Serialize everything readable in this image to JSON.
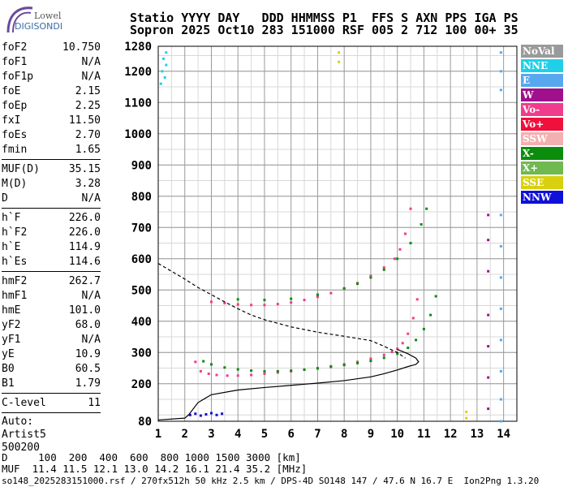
{
  "logo": {
    "line1": "Lowell",
    "line2": "DIGISONDE"
  },
  "header": {
    "row1": "Statio YYYY DAY   DDD HHMMSS P1  FFS S AXN PPS IGA PS",
    "row2": "Sopron 2025 Oct10 283 151000 RSF 005 2 712 100 00+ 35"
  },
  "params": {
    "group1": [
      {
        "k": "foF2",
        "v": "10.750"
      },
      {
        "k": "foF1",
        "v": "N/A"
      },
      {
        "k": "foF1p",
        "v": "N/A"
      },
      {
        "k": "foE",
        "v": "2.15"
      },
      {
        "k": "foEp",
        "v": "2.25"
      },
      {
        "k": "fxI",
        "v": "11.50"
      },
      {
        "k": "foEs",
        "v": "2.70"
      },
      {
        "k": "fmin",
        "v": "1.65"
      }
    ],
    "group2": [
      {
        "k": "MUF(D)",
        "v": "35.15"
      },
      {
        "k": "M(D)",
        "v": "3.28"
      },
      {
        "k": "D",
        "v": "N/A"
      }
    ],
    "group3": [
      {
        "k": "h`F",
        "v": "226.0"
      },
      {
        "k": "h`F2",
        "v": "226.0"
      },
      {
        "k": "h`E",
        "v": "114.9"
      },
      {
        "k": "h`Es",
        "v": "114.6"
      }
    ],
    "group4": [
      {
        "k": "hmF2",
        "v": "262.7"
      },
      {
        "k": "hmF1",
        "v": "N/A"
      },
      {
        "k": "hmE",
        "v": "101.0"
      },
      {
        "k": "yF2",
        "v": "68.0"
      },
      {
        "k": "yF1",
        "v": "N/A"
      },
      {
        "k": "yE",
        "v": "10.9"
      },
      {
        "k": "B0",
        "v": "60.5"
      },
      {
        "k": "B1",
        "v": "1.79"
      }
    ],
    "group5": [
      {
        "k": "C-level",
        "v": "11"
      }
    ],
    "auto": [
      "Auto:",
      "Artist5",
      "500200"
    ]
  },
  "legend": [
    {
      "label": "NoVal",
      "color": "#9a9a9a"
    },
    {
      "label": "NNE",
      "color": "#20d0e8"
    },
    {
      "label": "E",
      "color": "#58a8f0"
    },
    {
      "label": "W",
      "color": "#a0108c"
    },
    {
      "label": "Vo-",
      "color": "#f03c8c"
    },
    {
      "label": "Vo+",
      "color": "#f0103c"
    },
    {
      "label": "SSW",
      "color": "#f4b0b0"
    },
    {
      "label": "X-",
      "color": "#0c8c0c"
    },
    {
      "label": "X+",
      "color": "#70b850"
    },
    {
      "label": "SSE",
      "color": "#d8d010"
    },
    {
      "label": "NNW",
      "color": "#1010d8"
    }
  ],
  "footer": {
    "row1": "D     100  200  400  600  800 1000 1500 3000 [km]",
    "row2": "MUF  11.4 11.5 12.1 13.0 14.2 16.1 21.4 35.2 [MHz]"
  },
  "credits": "so148_2025283151000.rsf / 270fx512h 50 kHz 2.5 km / DPS-4D SO148 147 / 47.6 N 16.7 E  Ion2Png 1.3.20",
  "chart_data": {
    "type": "scatter",
    "xlabel": "",
    "ylabel": "",
    "xlim": [
      1,
      14.5
    ],
    "ylim": [
      80,
      1280
    ],
    "x_ticks": [
      1,
      2,
      3,
      4,
      5,
      6,
      7,
      8,
      9,
      10,
      11,
      12,
      13,
      14
    ],
    "y_ticks": [
      80,
      200,
      300,
      400,
      500,
      600,
      700,
      800,
      900,
      1000,
      1100,
      1200,
      1280
    ],
    "grid": true,
    "series": [
      {
        "name": "Vo-",
        "color": "#f03c8c",
        "style": "dots",
        "x": [
          2.4,
          2.6,
          2.9,
          3.2,
          3.6,
          4.0,
          4.5,
          5.0,
          5.5,
          6.0,
          6.5,
          7.0,
          7.5,
          8.0,
          8.5,
          9.0,
          9.5,
          9.8,
          10.0,
          10.2,
          10.4,
          10.6,
          10.75
        ],
        "y": [
          270,
          240,
          232,
          228,
          226,
          226,
          228,
          232,
          236,
          240,
          245,
          250,
          256,
          262,
          270,
          280,
          292,
          302,
          312,
          330,
          360,
          410,
          470
        ]
      },
      {
        "name": "Vo-",
        "color": "#f03c8c",
        "style": "dots",
        "x": [
          3.0,
          3.5,
          4.0,
          4.5,
          5.0,
          5.5,
          6.0,
          6.5,
          7.0,
          7.5,
          8.0,
          8.5,
          9.0,
          9.5,
          9.9,
          10.1,
          10.3,
          10.5
        ],
        "y": [
          462,
          458,
          454,
          452,
          452,
          455,
          460,
          468,
          478,
          490,
          505,
          522,
          545,
          572,
          600,
          630,
          680,
          760
        ]
      },
      {
        "name": "X-",
        "color": "#0c8c0c",
        "style": "dots",
        "x": [
          2.7,
          3.0,
          3.5,
          4.0,
          4.5,
          5.0,
          5.5,
          6.0,
          6.5,
          7.0,
          7.5,
          8.0,
          8.5,
          9.0,
          9.5,
          10.0,
          10.4,
          10.7,
          11.0,
          11.25,
          11.45
        ],
        "y": [
          272,
          262,
          252,
          246,
          242,
          240,
          240,
          242,
          245,
          249,
          254,
          260,
          266,
          273,
          283,
          296,
          315,
          340,
          375,
          420,
          480
        ]
      },
      {
        "name": "X-",
        "color": "#0c8c0c",
        "style": "dots",
        "x": [
          4.0,
          5.0,
          6.0,
          7.0,
          8.0,
          8.5,
          9.0,
          9.5,
          10.0,
          10.5,
          10.9,
          11.1
        ],
        "y": [
          470,
          468,
          472,
          485,
          505,
          520,
          540,
          565,
          600,
          650,
          710,
          760
        ]
      },
      {
        "name": "W",
        "color": "#a0108c",
        "style": "dots",
        "x": [
          13.42,
          13.42,
          13.42,
          13.42,
          13.42,
          13.42,
          13.42
        ],
        "y": [
          120,
          220,
          320,
          420,
          560,
          660,
          740
        ]
      },
      {
        "name": "E",
        "color": "#58a8f0",
        "style": "dots",
        "x": [
          13.9,
          13.9,
          13.9,
          13.9,
          13.9,
          13.9,
          13.9,
          13.9,
          13.9,
          13.9,
          13.9
        ],
        "y": [
          80,
          150,
          240,
          340,
          440,
          540,
          640,
          740,
          1140,
          1200,
          1260
        ]
      },
      {
        "name": "NNE",
        "color": "#20d0e8",
        "style": "dots",
        "x": [
          1.1,
          1.15,
          1.2,
          1.25,
          1.3,
          1.3
        ],
        "y": [
          1160,
          1200,
          1240,
          1180,
          1220,
          1260
        ]
      },
      {
        "name": "NNW",
        "color": "#1010d8",
        "style": "dots",
        "x": [
          2.2,
          2.4,
          2.6,
          2.8,
          3.0,
          3.2,
          3.4
        ],
        "y": [
          100,
          104,
          98,
          102,
          106,
          100,
          104
        ]
      },
      {
        "name": "SSE",
        "color": "#d8d010",
        "style": "dots",
        "x": [
          7.8,
          7.8,
          12.6,
          12.6
        ],
        "y": [
          1230,
          1260,
          90,
          110
        ]
      },
      {
        "name": "profile",
        "color": "#000000",
        "style": "solid",
        "x": [
          1.0,
          2.0,
          2.15,
          2.5,
          3.0,
          4.0,
          5.0,
          6.0,
          7.0,
          8.0,
          9.0,
          9.5,
          10.0,
          10.4,
          10.7,
          10.8,
          10.7,
          10.4,
          10.0
        ],
        "y": [
          84,
          90,
          101,
          140,
          165,
          180,
          188,
          195,
          202,
          210,
          222,
          232,
          244,
          255,
          262,
          270,
          282,
          296,
          310
        ]
      },
      {
        "name": "profile",
        "color": "#000000",
        "style": "dashed",
        "x": [
          1.0,
          1.5,
          2.0,
          2.5,
          3.0,
          3.5,
          4.0,
          4.5,
          5.0,
          6.0,
          7.0,
          8.0,
          9.0,
          9.5,
          10.0,
          10.3
        ],
        "y": [
          585,
          560,
          535,
          508,
          485,
          462,
          440,
          420,
          405,
          382,
          365,
          352,
          338,
          320,
          300,
          282
        ]
      }
    ]
  }
}
